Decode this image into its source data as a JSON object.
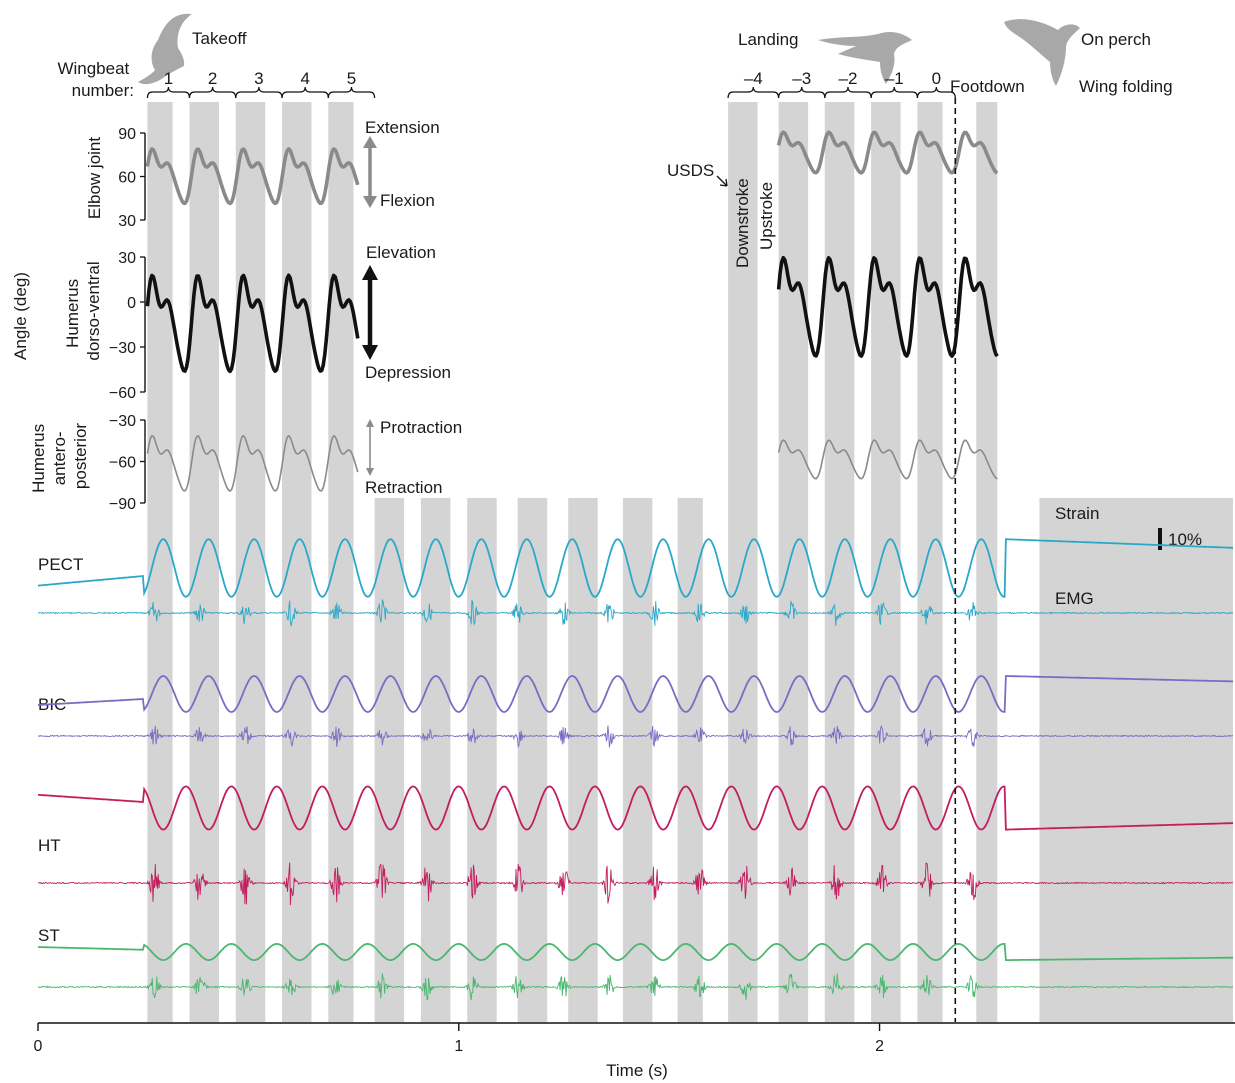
{
  "chart_data": {
    "type": "line",
    "x_axis": {
      "label": "Time (s)",
      "range": [
        0,
        2.84
      ],
      "ticks": [
        0,
        1,
        2
      ]
    },
    "stroke_bands": [
      [
        0.26,
        0.32
      ],
      [
        0.36,
        0.43
      ],
      [
        0.47,
        0.54
      ],
      [
        0.58,
        0.65
      ],
      [
        0.69,
        0.75
      ],
      [
        0.8,
        0.87
      ],
      [
        0.91,
        0.98
      ],
      [
        1.02,
        1.09
      ],
      [
        1.14,
        1.21
      ],
      [
        1.26,
        1.33
      ],
      [
        1.39,
        1.46
      ],
      [
        1.52,
        1.58
      ],
      [
        1.64,
        1.71
      ],
      [
        1.76,
        1.83
      ],
      [
        1.87,
        1.94
      ],
      [
        1.98,
        2.05
      ],
      [
        2.09,
        2.15
      ],
      [
        2.23,
        2.28
      ],
      [
        2.38,
        2.84
      ]
    ],
    "phases": {
      "takeoff": "Takeoff",
      "landing": "Landing",
      "perch": "On perch",
      "folding": "Wing folding"
    },
    "wingbeat_label": "Wingbeat number:",
    "takeoff_wingbeats": [
      "1",
      "2",
      "3",
      "4",
      "5"
    ],
    "landing_wingbeats": [
      "–4",
      "–3",
      "–2",
      "–1",
      "0"
    ],
    "footdown": {
      "label": "Footdown",
      "time": 2.18
    },
    "usds": {
      "label": "USDS",
      "downstroke": "Downstroke",
      "upstroke": "Upstroke"
    },
    "angle_ylabel": "Angle (deg)",
    "angle_panels": [
      {
        "name": "Elbow joint",
        "ylabel": "Elbow joint",
        "ylim": [
          30,
          90
        ],
        "ticks": [
          30,
          60,
          90
        ],
        "high_label": "Extension",
        "low_label": "Flexion",
        "color": "#8a8a8a",
        "takeoff_range": [
          0.26,
          0.76
        ],
        "landing_range": [
          1.76,
          2.28
        ],
        "peaks": [
          85,
          95
        ],
        "troughs": [
          38,
          60
        ]
      },
      {
        "name": "Humerus dorso-ventral",
        "ylabel": "Humerus dorso-ventral",
        "ylim": [
          -60,
          30
        ],
        "ticks": [
          -60,
          -30,
          0,
          30
        ],
        "high_label": "Elevation",
        "low_label": "Depression",
        "color": "#111111",
        "takeoff_range": [
          0.26,
          0.76
        ],
        "landing_range": [
          1.76,
          2.28
        ],
        "peaks": [
          30,
          42
        ],
        "troughs": [
          -50,
          -40
        ]
      },
      {
        "name": "Humerus antero-posterior",
        "ylabel": "Humerus antero-posterior",
        "ylim": [
          -90,
          -30
        ],
        "ticks": [
          -90,
          -60,
          -30
        ],
        "high_label": "Protraction",
        "low_label": "Retraction",
        "color": "#8a8a8a",
        "takeoff_range": [
          0.26,
          0.76
        ],
        "landing_range": [
          1.76,
          2.28
        ],
        "peaks": [
          -35,
          -40
        ],
        "troughs": [
          -85,
          -75
        ]
      }
    ],
    "muscles": [
      {
        "name": "PECT",
        "color": "#2aa8c8"
      },
      {
        "name": "BIC",
        "color": "#7a6cc4"
      },
      {
        "name": "HT",
        "color": "#c21d5e"
      },
      {
        "name": "ST",
        "color": "#4bb66f"
      }
    ],
    "trace_labels": {
      "strain": "Strain",
      "emg": "EMG"
    },
    "scale_bar": "10%"
  }
}
